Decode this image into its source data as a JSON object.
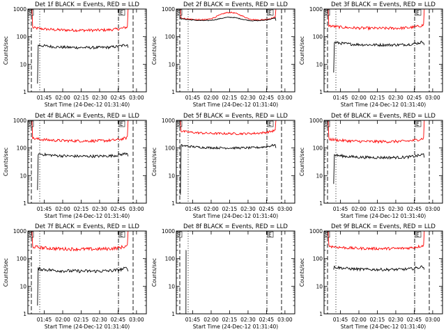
{
  "chart_data": [
    {
      "type": "line",
      "title": "Det 1f BLACK = Events, RED = LLD",
      "xlabel": "Start Time (24-Dec-12 01:31:40)",
      "ylabel": "Counts/sec",
      "x_ticks": [
        "01:45",
        "02:00",
        "02:15",
        "02:30",
        "02:45",
        "03:00"
      ],
      "xlim": [
        "01:31:40",
        "03:08:00"
      ],
      "y_scale": "log",
      "y_ticks": [
        "1",
        "10",
        "100",
        "1000"
      ],
      "ylim": [
        1,
        1000
      ],
      "markers": {
        "start": "S",
        "end": "E"
      },
      "series": [
        {
          "color": "#ff0000",
          "start": "01:35:00",
          "end": "02:53:10",
          "edge_left": 1000,
          "edge_right": 1000,
          "level": 170,
          "noise": 0.05
        },
        {
          "color": "#000000",
          "start": "01:39:30",
          "end": "02:53:10",
          "edge_left": 2,
          "edge_right": 40,
          "level": 40,
          "noise": 0.05
        }
      ]
    },
    {
      "type": "line",
      "title": "Det 2f BLACK = Events, RED = LLD",
      "xlabel": "Start Time (24-Dec-12 01:31:40)",
      "ylabel": "Counts/sec",
      "x_ticks": [
        "01:45",
        "02:00",
        "02:15",
        "02:30",
        "02:45",
        "03:00"
      ],
      "xlim": [
        "01:31:40",
        "03:08:00"
      ],
      "y_scale": "log",
      "y_ticks": [
        "1",
        "10",
        "100",
        "1000"
      ],
      "ylim": [
        1,
        1000
      ],
      "markers": {
        "start": "S",
        "end": "E"
      },
      "series": [
        {
          "color": "#ff0000",
          "start": "01:35:00",
          "end": "02:52:40",
          "edge_left": 1000,
          "edge_right": 1000,
          "level": 380,
          "bump": 750,
          "noise": 0.02
        },
        {
          "color": "#000000",
          "start": "01:35:00",
          "end": "02:52:40",
          "edge_left": 500,
          "edge_right": 380,
          "level": 360,
          "bump": 500,
          "noise": 0.015
        }
      ]
    },
    {
      "type": "line",
      "title": "Det 3f BLACK = Events, RED = LLD",
      "xlabel": "Start Time (24-Dec-12 01:31:40)",
      "ylabel": "Counts/sec",
      "x_ticks": [
        "01:45",
        "02:00",
        "02:15",
        "02:30",
        "02:45",
        "03:00"
      ],
      "xlim": [
        "01:31:40",
        "03:08:00"
      ],
      "y_scale": "log",
      "y_ticks": [
        "1",
        "10",
        "100",
        "1000"
      ],
      "ylim": [
        1,
        1000
      ],
      "markers": {
        "start": "S",
        "end": "E"
      },
      "series": [
        {
          "color": "#ff0000",
          "start": "01:35:00",
          "end": "02:53:10",
          "edge_left": 1000,
          "edge_right": 1000,
          "level": 200,
          "noise": 0.05
        },
        {
          "color": "#000000",
          "start": "01:39:30",
          "end": "02:53:10",
          "edge_left": 5,
          "edge_right": 50,
          "level": 50,
          "noise": 0.05
        }
      ]
    },
    {
      "type": "line",
      "title": "Det 4f BLACK = Events, RED = LLD",
      "xlabel": "Start Time (24-Dec-12 01:31:40)",
      "ylabel": "Counts/sec",
      "x_ticks": [
        "01:45",
        "02:00",
        "02:15",
        "02:30",
        "02:45",
        "03:00"
      ],
      "xlim": [
        "01:31:40",
        "03:08:00"
      ],
      "y_scale": "log",
      "y_ticks": [
        "1",
        "10",
        "100",
        "1000"
      ],
      "ylim": [
        1,
        1000
      ],
      "markers": {
        "start": "S",
        "end": "E"
      },
      "series": [
        {
          "color": "#ff0000",
          "start": "01:35:00",
          "end": "02:53:10",
          "edge_left": 1000,
          "edge_right": 1000,
          "level": 180,
          "noise": 0.05
        },
        {
          "color": "#000000",
          "start": "01:39:30",
          "end": "02:53:10",
          "edge_left": 3,
          "edge_right": 50,
          "level": 50,
          "noise": 0.05
        }
      ]
    },
    {
      "type": "line",
      "title": "Det 5f BLACK = Events, RED = LLD",
      "xlabel": "Start Time (24-Dec-12 01:31:40)",
      "ylabel": "Counts/sec",
      "x_ticks": [
        "01:45",
        "02:00",
        "02:15",
        "02:30",
        "02:45",
        "03:00"
      ],
      "xlim": [
        "01:31:40",
        "03:08:00"
      ],
      "y_scale": "log",
      "y_ticks": [
        "1",
        "10",
        "100",
        "1000"
      ],
      "ylim": [
        1,
        1000
      ],
      "markers": {
        "start": "S",
        "end": "E"
      },
      "series": [
        {
          "color": "#ff0000",
          "start": "01:35:00",
          "end": "02:52:40",
          "edge_left": 1000,
          "edge_right": 1000,
          "level": 330,
          "noise": 0.04
        },
        {
          "color": "#000000",
          "start": "01:35:00",
          "end": "02:52:40",
          "edge_left": 2,
          "edge_right": 100,
          "level": 100,
          "noise": 0.04
        }
      ]
    },
    {
      "type": "line",
      "title": "Det 6f BLACK = Events, RED = LLD",
      "xlabel": "Start Time (24-Dec-12 01:31:40)",
      "ylabel": "Counts/sec",
      "x_ticks": [
        "01:45",
        "02:00",
        "02:15",
        "02:30",
        "02:45",
        "03:00"
      ],
      "xlim": [
        "01:31:40",
        "03:08:00"
      ],
      "y_scale": "log",
      "y_ticks": [
        "1",
        "10",
        "100",
        "1000"
      ],
      "ylim": [
        1,
        1000
      ],
      "markers": {
        "start": "S",
        "end": "E"
      },
      "series": [
        {
          "color": "#ff0000",
          "start": "01:35:00",
          "end": "02:53:10",
          "edge_left": 1000,
          "edge_right": 1000,
          "level": 170,
          "noise": 0.05
        },
        {
          "color": "#000000",
          "start": "01:39:30",
          "end": "02:53:10",
          "edge_left": 5,
          "edge_right": 45,
          "level": 45,
          "noise": 0.05
        }
      ]
    },
    {
      "type": "line",
      "title": "Det 7f BLACK = Events, RED = LLD",
      "xlabel": "Start Time (24-Dec-12 01:31:40)",
      "ylabel": "Counts/sec",
      "x_ticks": [
        "01:45",
        "02:00",
        "02:15",
        "02:30",
        "02:45",
        "03:00"
      ],
      "xlim": [
        "01:31:40",
        "03:08:00"
      ],
      "y_scale": "log",
      "y_ticks": [
        "1",
        "10",
        "100",
        "1000"
      ],
      "ylim": [
        1,
        1000
      ],
      "markers": {
        "start": "S",
        "end": "E"
      },
      "series": [
        {
          "color": "#ff0000",
          "start": "01:35:00",
          "end": "02:53:10",
          "edge_left": 1000,
          "edge_right": 1000,
          "level": 220,
          "noise": 0.06
        },
        {
          "color": "#000000",
          "start": "01:39:30",
          "end": "02:53:10",
          "edge_left": 2,
          "edge_right": 35,
          "level": 35,
          "noise": 0.06
        }
      ]
    },
    {
      "type": "line",
      "title": "Det 8f BLACK = Events, RED = LLD",
      "xlabel": "Start Time (24-Dec-12 01:31:40)",
      "ylabel": "Counts/sec",
      "x_ticks": [
        "01:45",
        "02:00",
        "02:15",
        "02:30",
        "02:45",
        "03:00"
      ],
      "xlim": [
        "01:31:40",
        "03:08:00"
      ],
      "y_scale": "log",
      "y_ticks": [
        "1",
        "10",
        "100",
        "1000"
      ],
      "ylim": [
        1,
        1000
      ],
      "markers": {
        "start": "S",
        "end": "E"
      },
      "series": [
        {
          "color": "#000000",
          "start": "01:39:30",
          "end": "01:39:40",
          "edge_left": 1,
          "edge_right": 200,
          "level": 200,
          "noise": 0
        }
      ]
    },
    {
      "type": "line",
      "title": "Det 9f BLACK = Events, RED = LLD",
      "xlabel": "Start Time (24-Dec-12 01:31:40)",
      "ylabel": "Counts/sec",
      "x_ticks": [
        "01:45",
        "02:00",
        "02:15",
        "02:30",
        "02:45",
        "03:00"
      ],
      "xlim": [
        "01:31:40",
        "03:08:00"
      ],
      "y_scale": "log",
      "y_ticks": [
        "1",
        "10",
        "100",
        "1000"
      ],
      "ylim": [
        1,
        1000
      ],
      "markers": {
        "start": "S",
        "end": "E"
      },
      "series": [
        {
          "color": "#ff0000",
          "start": "01:35:00",
          "end": "02:53:10",
          "edge_left": 1000,
          "edge_right": 1000,
          "level": 230,
          "noise": 0.05
        },
        {
          "color": "#000000",
          "start": "01:39:30",
          "end": "02:53:10",
          "edge_left": 40,
          "edge_right": 40,
          "level": 40,
          "noise": 0.05
        }
      ]
    }
  ]
}
